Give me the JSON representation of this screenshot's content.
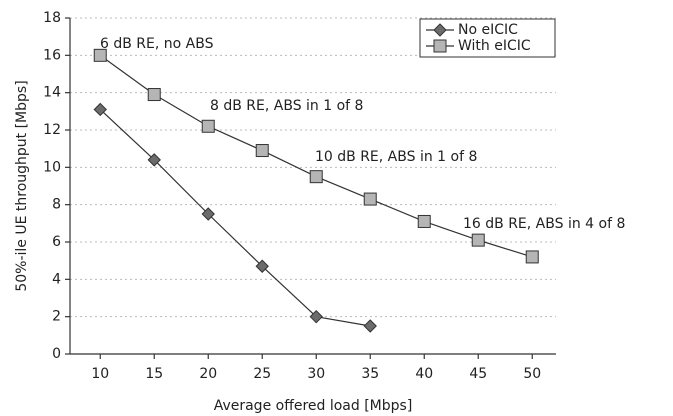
{
  "chart_data": {
    "type": "line",
    "xlabel": "Average offered load [Mbps]",
    "ylabel": "50%-ile UE throughput [Mbps]",
    "xlim": [
      7.2,
      52.2
    ],
    "xticks": [
      10,
      15,
      20,
      25,
      30,
      35,
      40,
      45,
      50
    ],
    "ylim": [
      0,
      18
    ],
    "yticks": [
      0,
      2,
      4,
      6,
      8,
      10,
      12,
      14,
      16,
      18
    ],
    "grid": true,
    "legend": "upper right",
    "series": [
      {
        "name": "No eICIC",
        "color": "#6b6b6b",
        "marker": "diamond",
        "x": [
          10,
          15,
          20,
          25,
          30,
          35
        ],
        "values": [
          13.1,
          10.4,
          7.5,
          4.7,
          2.0,
          1.5
        ]
      },
      {
        "name": "With eICIC",
        "color": "#b5b5b5",
        "marker": "square",
        "x": [
          10,
          15,
          20,
          25,
          30,
          35,
          40,
          45,
          50
        ],
        "values": [
          16.0,
          13.9,
          12.2,
          10.9,
          9.5,
          8.3,
          7.1,
          6.1,
          5.2
        ]
      }
    ],
    "annotations": [
      "6 dB RE, no ABS",
      "8 dB RE, ABS in 1 of 8",
      "10 dB RE, ABS in 1 of 8",
      "16 dB RE, ABS in 4 of 8"
    ]
  }
}
